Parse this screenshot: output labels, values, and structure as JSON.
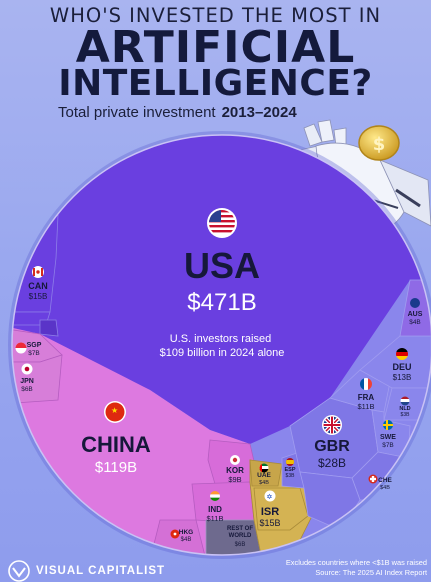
{
  "header": {
    "kicker": "WHO'S INVESTED THE MOST IN",
    "title_line1": "ARTIFICIAL",
    "title_line2": "INTELLIGENCE?",
    "subtitle": "Total private investment",
    "period": "2013–2024"
  },
  "chart_data": {
    "type": "voronoi-treemap",
    "title": "WHO'S INVESTED THE MOST IN ARTIFICIAL INTELLIGENCE?",
    "subtitle": "Total private investment 2013–2024",
    "unit": "billion USD",
    "annotation": "U.S. investors raised $109 billion in 2024 alone",
    "items": [
      {
        "code": "USA",
        "label": "$471B",
        "value": 471,
        "color": "#6a3fe0"
      },
      {
        "code": "CHINA",
        "label": "$119B",
        "value": 119,
        "color": "#dd79e0"
      },
      {
        "code": "GBR",
        "label": "$28B",
        "value": 28,
        "color": "#7f77e6"
      },
      {
        "code": "ISR",
        "label": "$15B",
        "value": 15,
        "color": "#d4b353"
      },
      {
        "code": "CAN",
        "label": "$15B",
        "value": 15,
        "color": "#6a3fe0"
      },
      {
        "code": "DEU",
        "label": "$13B",
        "value": 13,
        "color": "#8a86ec"
      },
      {
        "code": "IND",
        "label": "$11B",
        "value": 11,
        "color": "#d76cd9"
      },
      {
        "code": "FRA",
        "label": "$11B",
        "value": 11,
        "color": "#8a86ec"
      },
      {
        "code": "KOR",
        "label": "$9B",
        "value": 9,
        "color": "#d76cd9"
      },
      {
        "code": "SGP",
        "label": "$7B",
        "value": 7,
        "color": "#d77ed9"
      },
      {
        "code": "SWE",
        "label": "$7B",
        "value": 7,
        "color": "#8a86ec"
      },
      {
        "code": "JPN",
        "label": "$6B",
        "value": 6,
        "color": "#d77ed9"
      },
      {
        "code": "REST OF WORLD",
        "label": "$6B",
        "value": 6,
        "color": "#6e6a8e"
      },
      {
        "code": "UAE",
        "label": "$4B",
        "value": 4,
        "color": "#c7a54a"
      },
      {
        "code": "AUS",
        "label": "$4B",
        "value": 4,
        "color": "#8f6ae6"
      },
      {
        "code": "HKG",
        "label": "$4B",
        "value": 4,
        "color": "#d470d6"
      },
      {
        "code": "CHE",
        "label": "$4B",
        "value": 4,
        "color": "#7f77e6"
      },
      {
        "code": "NLD",
        "label": "$3B",
        "value": 3,
        "color": "#8a86ec"
      },
      {
        "code": "ESP",
        "label": "$3B",
        "value": 3,
        "color": "#7f77e6"
      }
    ]
  },
  "footer": {
    "brand": "VISUAL CAPITALIST",
    "note_line1": "Excludes countries where <$1B was raised",
    "note_line2": "Source: The 2025 AI Index Report"
  },
  "colors": {
    "background": "#9aa8ef",
    "north_america": "#6a3fe0",
    "asia": "#dd79e0",
    "europe": "#8a86ec",
    "middle_east": "#d4b353",
    "rest_of_world": "#6e6a8e"
  },
  "icons": [
    "robot-hand-icon",
    "coin-icon",
    "flag-icons",
    "visual-capitalist-logo-icon"
  ]
}
